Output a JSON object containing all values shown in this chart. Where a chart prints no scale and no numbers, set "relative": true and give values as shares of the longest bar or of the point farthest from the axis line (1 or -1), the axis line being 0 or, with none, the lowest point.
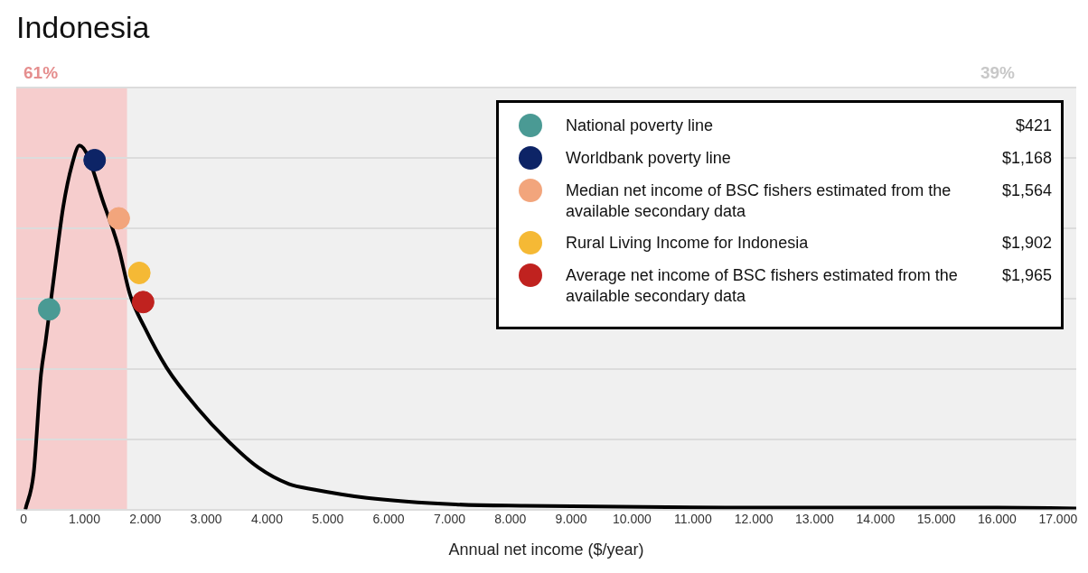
{
  "chart_data": {
    "type": "line",
    "title": "Indonesia",
    "xlabel": "Annual net income ($/year)",
    "relative": true,
    "grid": "y",
    "legend": "top right",
    "xlim": [
      -120,
      17300
    ],
    "xticks": [
      0,
      {
        "value": 1000,
        "label": "1.000"
      },
      {
        "value": 2000,
        "label": "2.000"
      },
      {
        "value": 3000,
        "label": "3.000"
      },
      {
        "value": 4000,
        "label": "4.000"
      },
      {
        "value": 5000,
        "label": "5.000"
      },
      {
        "value": 6000,
        "label": "6.000"
      },
      {
        "value": 7000,
        "label": "7.000"
      },
      {
        "value": 8000,
        "label": "8.000"
      },
      {
        "value": 9000,
        "label": "9.000"
      },
      {
        "value": 10000,
        "label": "10.000"
      },
      {
        "value": 11000,
        "label": "11.000"
      },
      {
        "value": 12000,
        "label": "12.000"
      },
      {
        "value": 13000,
        "label": "13.000"
      },
      {
        "value": 14000,
        "label": "14.000"
      },
      {
        "value": 15000,
        "label": "15.000"
      },
      {
        "value": 16000,
        "label": "16.000"
      },
      {
        "value": 17000,
        "label": "17.000"
      }
    ],
    "bands": [
      {
        "axis": "x",
        "from": -120,
        "to": 1700,
        "label": "61%",
        "color": "#f6cdcd"
      }
    ],
    "annotations": [
      "39%",
      "$421",
      "$1,168",
      "$1,564",
      "$1,902",
      "$1,965"
    ],
    "series": [
      {
        "color": "#000000",
        "x": [
          30,
          166,
          286,
          361,
          500,
          650,
          800,
          919,
          1340,
          1560,
          1750,
          1990,
          2350,
          2850,
          3350,
          3860,
          4360,
          4770,
          5640,
          7100,
          8230,
          11700,
          16000,
          17300
        ],
        "values": [
          0,
          0.1,
          0.37,
          0.46,
          0.64,
          0.83,
          0.95,
          1,
          0.83,
          0.72,
          0.59,
          0.5,
          0.39,
          0.28,
          0.19,
          0.115,
          0.07,
          0.055,
          0.032,
          0.014,
          0.01,
          0.005,
          0.005,
          0.003
        ]
      },
      {
        "type": "scatter",
        "name": "National poverty line",
        "color": "#4a9a94",
        "marker": "circle",
        "x": [
          421
        ],
        "values": [
          0.55
        ]
      },
      {
        "type": "scatter",
        "name": "Worldbank poverty line",
        "color": "#0d2466",
        "marker": "circle",
        "x": [
          1168
        ],
        "values": [
          0.96
        ]
      },
      {
        "type": "scatter",
        "name": "Median net income of BSC fishers estimated from the available secondary data",
        "color": "#f2a57c",
        "marker": "circle",
        "x": [
          1564
        ],
        "values": [
          0.8
        ]
      },
      {
        "type": "scatter",
        "name": "Rural Living Income for Indonesia",
        "color": "#f5b935",
        "marker": "circle",
        "x": [
          1902
        ],
        "values": [
          0.65
        ]
      },
      {
        "type": "scatter",
        "name": "Average net income of BSC fishers estimated from the available secondary data",
        "color": "#c0221f",
        "marker": "circle",
        "x": [
          1965
        ],
        "values": [
          0.57
        ]
      }
    ]
  }
}
